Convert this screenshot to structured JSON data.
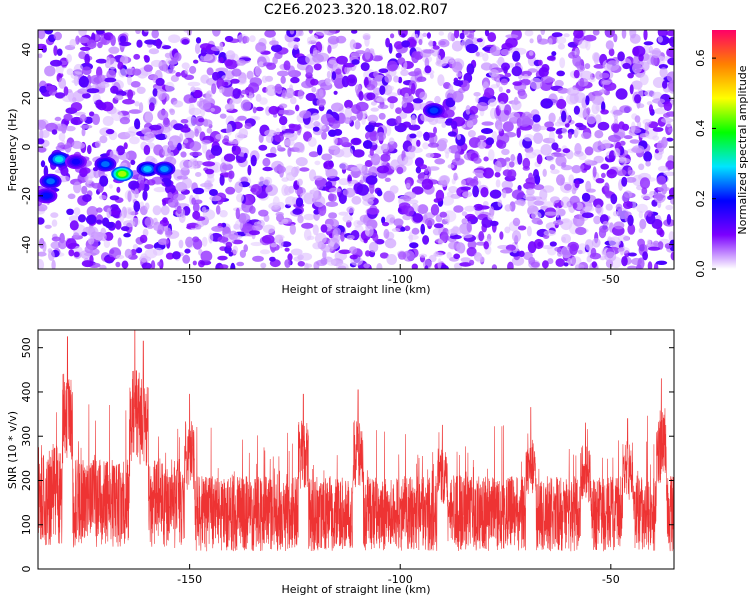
{
  "title": "C2E6.2023.320.18.02.R07",
  "chart_data": [
    {
      "type": "heatmap",
      "xlabel": "Height of straight line (km)",
      "ylabel": "Frequency (Hz)",
      "xlim": [
        -186,
        -35
      ],
      "ylim": [
        -50,
        48
      ],
      "xticks": [
        -150,
        -100,
        -50
      ],
      "yticks": [
        -40,
        -20,
        0,
        20,
        40
      ],
      "colorbar": {
        "label": "Normalized spectral amplitude",
        "range": [
          0.0,
          0.68
        ],
        "ticks": [
          0.0,
          0.2,
          0.4,
          0.6
        ],
        "colors": [
          "#ffffff",
          "#7b00ff",
          "#0000ff",
          "#00e5ff",
          "#00ff00",
          "#ffff00",
          "#ff8000",
          "#ff0066"
        ]
      },
      "hotspots": [
        {
          "x": -181,
          "y": -5,
          "amp": 0.3
        },
        {
          "x": -183,
          "y": -14,
          "amp": 0.24
        },
        {
          "x": -184,
          "y": -20,
          "amp": 0.2
        },
        {
          "x": -177,
          "y": -6,
          "amp": 0.18
        },
        {
          "x": -170,
          "y": -7,
          "amp": 0.24
        },
        {
          "x": -166,
          "y": -11,
          "amp": 0.45
        },
        {
          "x": -160,
          "y": -9,
          "amp": 0.28
        },
        {
          "x": -156,
          "y": -9,
          "amp": 0.26
        },
        {
          "x": -92,
          "y": 15,
          "amp": 0.22
        }
      ]
    },
    {
      "type": "line",
      "xlabel": "Height of straight line (km)",
      "ylabel": "SNR (10 * v/v)",
      "xlim": [
        -186,
        -35
      ],
      "ylim": [
        0,
        540
      ],
      "xticks": [
        -150,
        -100,
        -50
      ],
      "yticks": [
        0,
        100,
        200,
        300,
        400,
        500
      ],
      "color": "#ee3333",
      "baseline_mean": 125,
      "peaks": [
        {
          "x": -179,
          "y": 525
        },
        {
          "x": -163,
          "y": 540
        },
        {
          "x": -161,
          "y": 515
        },
        {
          "x": -150,
          "y": 395
        },
        {
          "x": -123,
          "y": 395
        },
        {
          "x": -110,
          "y": 405
        },
        {
          "x": -90,
          "y": 325
        },
        {
          "x": -69,
          "y": 365
        },
        {
          "x": -56,
          "y": 330
        },
        {
          "x": -46,
          "y": 340
        },
        {
          "x": -38,
          "y": 430
        }
      ]
    }
  ]
}
